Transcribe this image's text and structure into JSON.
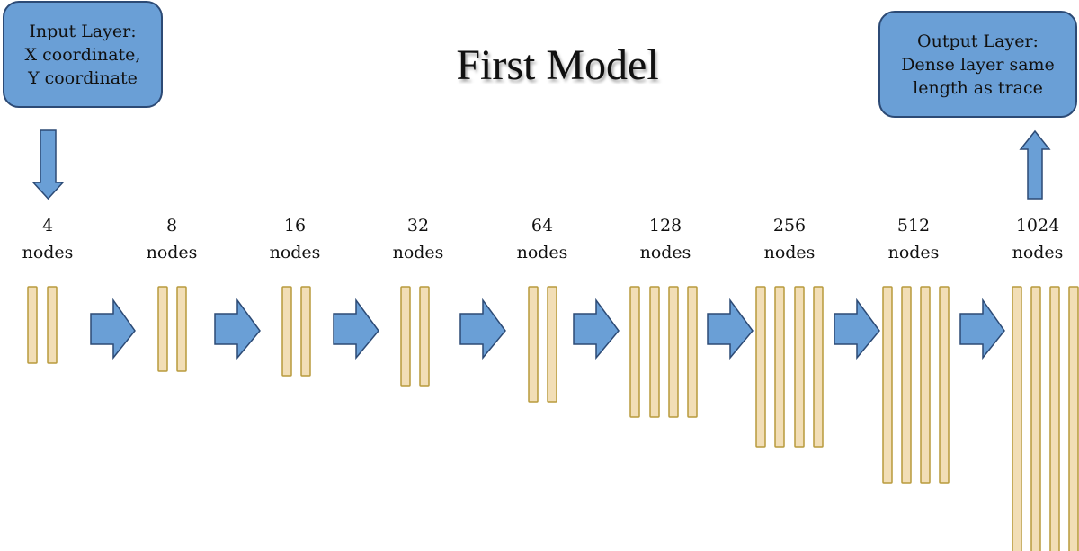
{
  "title": "First Model",
  "input_box": {
    "lines": [
      "Input Layer:",
      "X coordinate,",
      "Y coordinate"
    ]
  },
  "output_box": {
    "lines": [
      "Output Layer:",
      "Dense layer same",
      "length as trace"
    ]
  },
  "layers": [
    {
      "count": "4",
      "unit": "nodes"
    },
    {
      "count": "8",
      "unit": "nodes"
    },
    {
      "count": "16",
      "unit": "nodes"
    },
    {
      "count": "32",
      "unit": "nodes"
    },
    {
      "count": "64",
      "unit": "nodes"
    },
    {
      "count": "128",
      "unit": "nodes"
    },
    {
      "count": "256",
      "unit": "nodes"
    },
    {
      "count": "512",
      "unit": "nodes"
    },
    {
      "count": "1024",
      "unit": "nodes"
    }
  ],
  "colors": {
    "box_fill": "#6a9fd6",
    "box_border": "#2c4a75",
    "bar_fill": "#f2deb6",
    "bar_border": "#b89a3c",
    "arrow_fill": "#6a9fd6"
  }
}
